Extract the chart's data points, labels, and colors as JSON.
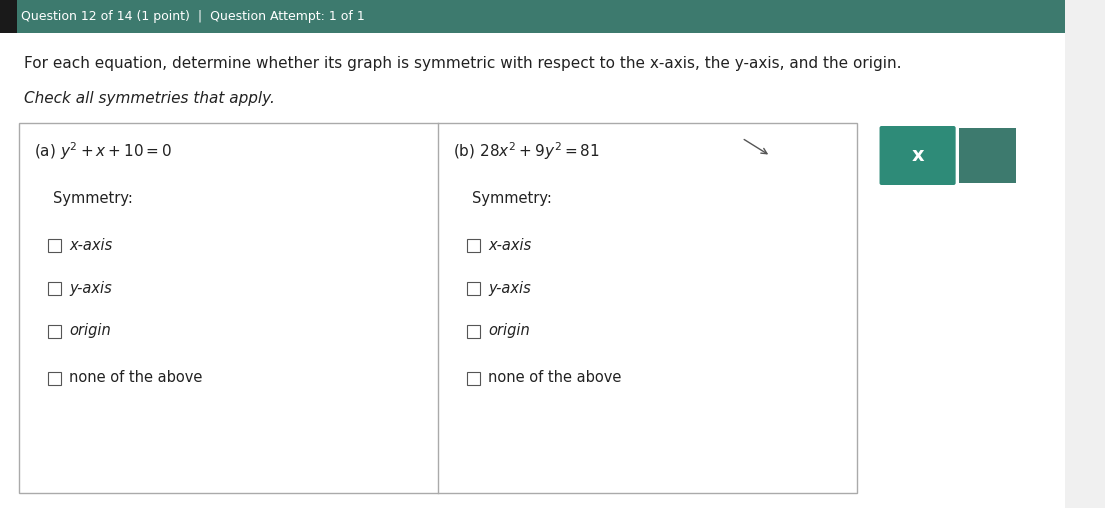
{
  "header_bg": "#3d7a6e",
  "header_text": "Question 12 of 14 (1 point)  |  Question Attempt: 1 of 1",
  "header_text_color": "#ffffff",
  "header_fontsize": 9,
  "page_bg": "#f0f0f0",
  "content_bg": "#ffffff",
  "instruction_text": "For each equation, determine whether its graph is symmetric with respect to the x-axis, the y-axis, and the origin.",
  "instruction2_text": "Check all symmetries that apply.",
  "instruction_fontsize": 11,
  "panel_border_color": "#aaaaaa",
  "panel_bg": "#ffffff",
  "eq_a_label": "(a)",
  "eq_a_formula": "$y^2 + x + 10 = 0$",
  "eq_b_label": "(b)",
  "eq_b_formula": "$28x^2 + 9y^2 = 81$",
  "symmetry_label": "Symmetry:",
  "options": [
    "x-axis",
    "y-axis",
    "origin",
    "none of the above"
  ],
  "checkbox_color": "#ffffff",
  "checkbox_border": "#555555",
  "text_color": "#222222",
  "x_button_bg": "#2e8b78",
  "x_button_text": "x",
  "x_button_text_color": "#ffffff",
  "side_button_bg": "#3d7a6e"
}
